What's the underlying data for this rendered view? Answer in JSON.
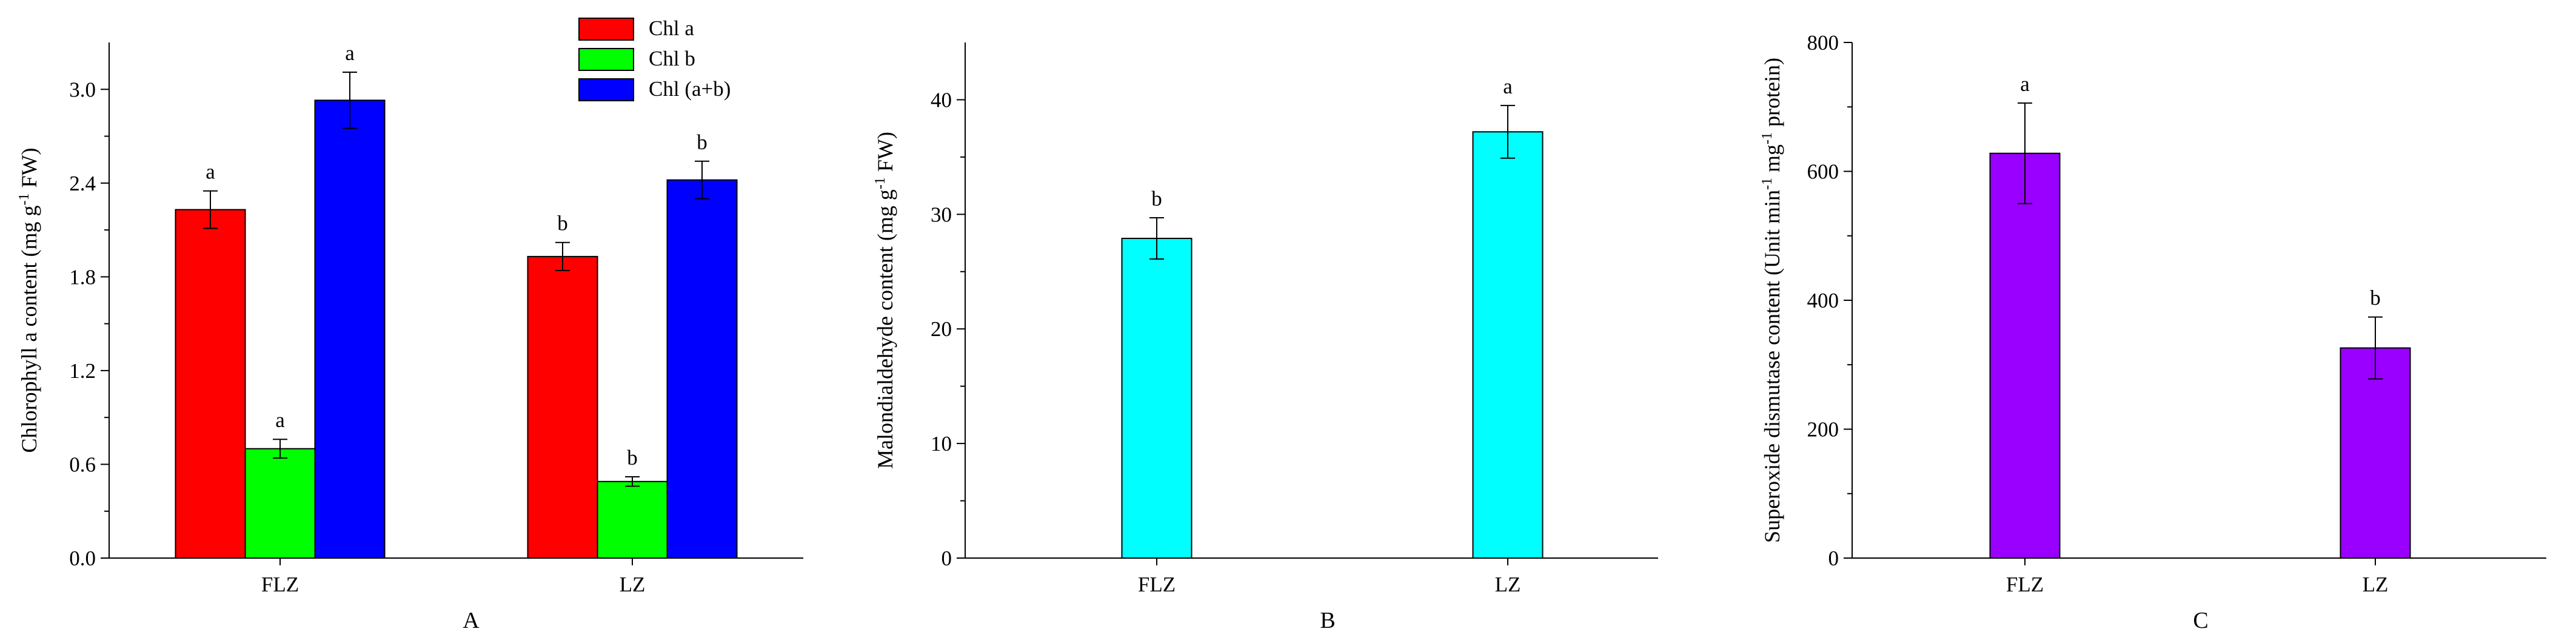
{
  "chart_data": [
    {
      "type": "bar",
      "panel_label": "A",
      "categories": [
        "FLZ",
        "LZ"
      ],
      "ylabel": "Chlorophyll a content (mg g",
      "ylabel_sup": "-1",
      "ylabel_end": " FW)",
      "ylim": [
        0,
        3.3
      ],
      "yticks": [
        "0.0",
        "0.6",
        "1.2",
        "1.8",
        "2.4",
        "3.0"
      ],
      "ytick_values": [
        0,
        0.6,
        1.2,
        1.8,
        2.4,
        3.0
      ],
      "legend_position": "top-right",
      "series": [
        {
          "name": "Chl a",
          "color": "#ff0000",
          "values": [
            2.23,
            1.93
          ],
          "errors": [
            0.12,
            0.09
          ],
          "letters": [
            "a",
            "b"
          ]
        },
        {
          "name": "Chl b",
          "color": "#00ff00",
          "values": [
            0.7,
            0.49
          ],
          "errors": [
            0.06,
            0.03
          ],
          "letters": [
            "a",
            "b"
          ]
        },
        {
          "name": "Chl (a+b)",
          "color": "#0000ff",
          "values": [
            2.93,
            2.42
          ],
          "errors": [
            0.18,
            0.12
          ],
          "letters": [
            "a",
            "b"
          ]
        }
      ]
    },
    {
      "type": "bar",
      "panel_label": "B",
      "categories": [
        "FLZ",
        "LZ"
      ],
      "ylabel": "Malondialdehyde content (mg g",
      "ylabel_sup": "-1",
      "ylabel_end": " FW)",
      "ylim": [
        0,
        45
      ],
      "yticks": [
        "0",
        "10",
        "20",
        "30",
        "40"
      ],
      "ytick_values": [
        0,
        10,
        20,
        30,
        40
      ],
      "series": [
        {
          "color": "#00ffff",
          "values": [
            27.9,
            37.2
          ],
          "errors": [
            1.8,
            2.3
          ],
          "letters": [
            "b",
            "a"
          ]
        }
      ]
    },
    {
      "type": "bar",
      "panel_label": "C",
      "categories": [
        "FLZ",
        "LZ"
      ],
      "ylabel": "Superoxide dismutase content (Unit min",
      "ylabel_sup": "-1",
      "ylabel_mid": " mg",
      "ylabel_sup2": "-1",
      "ylabel_end": " protein)",
      "ylim": [
        0,
        800
      ],
      "yticks": [
        "0",
        "200",
        "400",
        "600",
        "800"
      ],
      "ytick_values": [
        0,
        200,
        400,
        600,
        800
      ],
      "series": [
        {
          "color": "#9900ff",
          "values": [
            628,
            326
          ],
          "errors": [
            78,
            48
          ],
          "letters": [
            "a",
            "b"
          ]
        }
      ]
    }
  ]
}
